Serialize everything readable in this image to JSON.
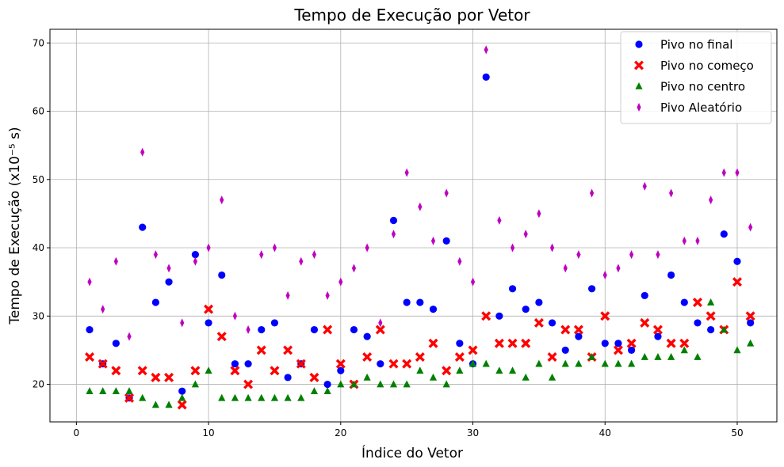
{
  "chart_data": {
    "type": "scatter",
    "title": "Tempo de Execução por Vetor",
    "xlabel": "Índice do Vetor",
    "ylabel": "Tempo de Execução (x10⁻⁵ s)",
    "xlim": [
      -2,
      53
    ],
    "ylim": [
      14.5,
      72
    ],
    "xticks": [
      0,
      10,
      20,
      30,
      40,
      50
    ],
    "yticks": [
      20,
      30,
      40,
      50,
      60,
      70
    ],
    "grid": true,
    "legend_position": "top-right",
    "x": [
      1,
      2,
      3,
      4,
      5,
      6,
      7,
      8,
      9,
      10,
      11,
      12,
      13,
      14,
      15,
      16,
      17,
      18,
      19,
      20,
      21,
      22,
      23,
      24,
      25,
      26,
      27,
      28,
      29,
      30,
      31,
      32,
      33,
      34,
      35,
      36,
      37,
      38,
      39,
      40,
      41,
      42,
      43,
      44,
      45,
      46,
      47,
      48,
      49,
      50,
      51
    ],
    "series": [
      {
        "name": "Pivo no final",
        "color": "#0000ff",
        "marker": "circle",
        "values": [
          28,
          23,
          26,
          18,
          43,
          32,
          35,
          19,
          39,
          29,
          36,
          23,
          23,
          28,
          29,
          21,
          23,
          28,
          20,
          22,
          28,
          27,
          23,
          44,
          32,
          32,
          31,
          41,
          26,
          23,
          65,
          30,
          34,
          31,
          32,
          29,
          25,
          27,
          34,
          26,
          26,
          25,
          33,
          27,
          36,
          32,
          29,
          28,
          42,
          38,
          29
        ]
      },
      {
        "name": "Pivo no começo",
        "color": "#ff0000",
        "marker": "x",
        "values": [
          24,
          23,
          22,
          18,
          22,
          21,
          21,
          17,
          22,
          31,
          27,
          22,
          20,
          25,
          22,
          25,
          23,
          21,
          28,
          23,
          20,
          24,
          28,
          23,
          23,
          24,
          26,
          22,
          24,
          25,
          30,
          26,
          26,
          26,
          29,
          24,
          28,
          28,
          24,
          30,
          25,
          26,
          29,
          28,
          26,
          26,
          32,
          30,
          28,
          35,
          30
        ]
      },
      {
        "name": "Pivo no centro",
        "color": "#008000",
        "marker": "triangle",
        "values": [
          19,
          19,
          19,
          19,
          18,
          17,
          17,
          18,
          20,
          22,
          18,
          18,
          18,
          18,
          18,
          18,
          18,
          19,
          19,
          20,
          20,
          21,
          20,
          20,
          20,
          22,
          21,
          20,
          22,
          23,
          23,
          22,
          22,
          21,
          23,
          21,
          23,
          23,
          24,
          23,
          23,
          23,
          24,
          24,
          24,
          25,
          24,
          32,
          28,
          25,
          26
        ]
      },
      {
        "name": "Pivo Aleatório",
        "color": "#bf00bf",
        "marker": "thin-diamond",
        "values": [
          35,
          31,
          38,
          27,
          54,
          39,
          37,
          29,
          38,
          40,
          47,
          30,
          28,
          39,
          40,
          33,
          38,
          39,
          33,
          35,
          37,
          40,
          29,
          42,
          51,
          46,
          41,
          48,
          38,
          35,
          69,
          44,
          40,
          42,
          45,
          40,
          37,
          39,
          48,
          36,
          37,
          39,
          49,
          39,
          48,
          41,
          41,
          47,
          51,
          51,
          43
        ]
      }
    ]
  }
}
